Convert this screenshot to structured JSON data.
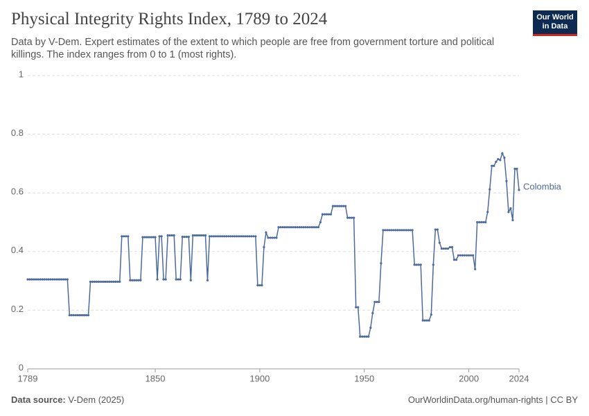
{
  "chart_data": {
    "type": "line",
    "title": "Physical Integrity Rights Index, 1789 to 2024",
    "subtitle": "Data by V-Dem. Expert estimates of the extent to which people are free from government torture and political killings. The index ranges from 0 to 1 (most rights).",
    "logo": [
      "Our World",
      "in Data"
    ],
    "source_label": "Data source:",
    "source": "V-Dem (2025)",
    "footer_right": "OurWorldinData.org/human-rights | CC BY",
    "xlim": [
      1789,
      2024
    ],
    "xticks": [
      1789,
      1850,
      1900,
      1950,
      2000,
      2024
    ],
    "ylim": [
      0,
      1
    ],
    "yticks": [
      0,
      0.2,
      0.4,
      0.6,
      0.8,
      1
    ],
    "grid": true,
    "x": [
      1789,
      1790,
      1791,
      1792,
      1793,
      1794,
      1795,
      1796,
      1797,
      1798,
      1799,
      1800,
      1801,
      1802,
      1803,
      1804,
      1805,
      1806,
      1807,
      1808,
      1809,
      1810,
      1811,
      1812,
      1813,
      1814,
      1815,
      1816,
      1817,
      1818,
      1819,
      1820,
      1821,
      1822,
      1823,
      1824,
      1825,
      1826,
      1827,
      1828,
      1829,
      1830,
      1831,
      1832,
      1833,
      1834,
      1835,
      1836,
      1837,
      1838,
      1839,
      1840,
      1841,
      1842,
      1843,
      1844,
      1845,
      1846,
      1847,
      1848,
      1849,
      1850,
      1851,
      1852,
      1853,
      1854,
      1855,
      1856,
      1857,
      1858,
      1859,
      1860,
      1861,
      1862,
      1863,
      1864,
      1865,
      1866,
      1867,
      1868,
      1869,
      1870,
      1871,
      1872,
      1873,
      1874,
      1875,
      1876,
      1877,
      1878,
      1879,
      1880,
      1881,
      1882,
      1883,
      1884,
      1885,
      1886,
      1887,
      1888,
      1889,
      1890,
      1891,
      1892,
      1893,
      1894,
      1895,
      1896,
      1897,
      1898,
      1899,
      1900,
      1901,
      1902,
      1903,
      1904,
      1905,
      1906,
      1907,
      1908,
      1909,
      1910,
      1911,
      1912,
      1913,
      1914,
      1915,
      1916,
      1917,
      1918,
      1919,
      1920,
      1921,
      1922,
      1923,
      1924,
      1925,
      1926,
      1927,
      1928,
      1929,
      1930,
      1931,
      1932,
      1933,
      1934,
      1935,
      1936,
      1937,
      1938,
      1939,
      1940,
      1941,
      1942,
      1943,
      1944,
      1945,
      1946,
      1947,
      1948,
      1949,
      1950,
      1951,
      1952,
      1953,
      1954,
      1955,
      1956,
      1957,
      1958,
      1959,
      1960,
      1961,
      1962,
      1963,
      1964,
      1965,
      1966,
      1967,
      1968,
      1969,
      1970,
      1971,
      1972,
      1973,
      1974,
      1975,
      1976,
      1977,
      1978,
      1979,
      1980,
      1981,
      1982,
      1983,
      1984,
      1985,
      1986,
      1987,
      1988,
      1989,
      1990,
      1991,
      1992,
      1993,
      1994,
      1995,
      1996,
      1997,
      1998,
      1999,
      2000,
      2001,
      2002,
      2003,
      2004,
      2005,
      2006,
      2007,
      2008,
      2009,
      2010,
      2011,
      2012,
      2013,
      2014,
      2015,
      2016,
      2017,
      2018,
      2019,
      2020,
      2021,
      2022,
      2023,
      2024
    ],
    "series": [
      {
        "name": "Colombia",
        "color": "#4c6a9c",
        "values": [
          0.305,
          0.305,
          0.305,
          0.305,
          0.305,
          0.305,
          0.305,
          0.305,
          0.305,
          0.305,
          0.305,
          0.305,
          0.305,
          0.305,
          0.305,
          0.305,
          0.305,
          0.305,
          0.305,
          0.305,
          0.183,
          0.183,
          0.183,
          0.183,
          0.183,
          0.183,
          0.183,
          0.183,
          0.183,
          0.183,
          0.297,
          0.297,
          0.297,
          0.297,
          0.297,
          0.297,
          0.297,
          0.297,
          0.297,
          0.297,
          0.297,
          0.297,
          0.297,
          0.297,
          0.297,
          0.452,
          0.452,
          0.452,
          0.452,
          0.302,
          0.302,
          0.302,
          0.302,
          0.302,
          0.302,
          0.449,
          0.449,
          0.449,
          0.449,
          0.449,
          0.449,
          0.449,
          0.305,
          0.452,
          0.452,
          0.305,
          0.305,
          0.455,
          0.455,
          0.455,
          0.455,
          0.305,
          0.305,
          0.305,
          0.45,
          0.45,
          0.45,
          0.45,
          0.302,
          0.455,
          0.455,
          0.455,
          0.455,
          0.455,
          0.455,
          0.455,
          0.302,
          0.452,
          0.452,
          0.452,
          0.452,
          0.452,
          0.452,
          0.452,
          0.452,
          0.452,
          0.452,
          0.452,
          0.452,
          0.452,
          0.452,
          0.452,
          0.452,
          0.452,
          0.452,
          0.452,
          0.452,
          0.452,
          0.452,
          0.452,
          0.285,
          0.285,
          0.285,
          0.415,
          0.465,
          0.447,
          0.447,
          0.447,
          0.447,
          0.447,
          0.483,
          0.483,
          0.483,
          0.483,
          0.483,
          0.483,
          0.483,
          0.483,
          0.483,
          0.483,
          0.483,
          0.483,
          0.483,
          0.483,
          0.483,
          0.483,
          0.483,
          0.483,
          0.483,
          0.483,
          0.5,
          0.527,
          0.527,
          0.527,
          0.527,
          0.527,
          0.555,
          0.555,
          0.555,
          0.555,
          0.555,
          0.555,
          0.555,
          0.515,
          0.515,
          0.515,
          0.515,
          0.21,
          0.21,
          0.11,
          0.11,
          0.11,
          0.11,
          0.11,
          0.14,
          0.19,
          0.228,
          0.228,
          0.228,
          0.36,
          0.473,
          0.473,
          0.473,
          0.473,
          0.473,
          0.473,
          0.473,
          0.473,
          0.473,
          0.473,
          0.473,
          0.473,
          0.473,
          0.473,
          0.473,
          0.355,
          0.355,
          0.355,
          0.355,
          0.165,
          0.165,
          0.165,
          0.165,
          0.185,
          0.355,
          0.475,
          0.475,
          0.43,
          0.41,
          0.41,
          0.41,
          0.41,
          0.415,
          0.415,
          0.372,
          0.372,
          0.387,
          0.387,
          0.387,
          0.387,
          0.387,
          0.387,
          0.387,
          0.387,
          0.34,
          0.5,
          0.5,
          0.5,
          0.5,
          0.5,
          0.535,
          0.612,
          0.692,
          0.692,
          0.706,
          0.715,
          0.712,
          0.735,
          0.72,
          0.64,
          0.535,
          0.547,
          0.507,
          0.682,
          0.682,
          0.61
        ]
      }
    ]
  }
}
